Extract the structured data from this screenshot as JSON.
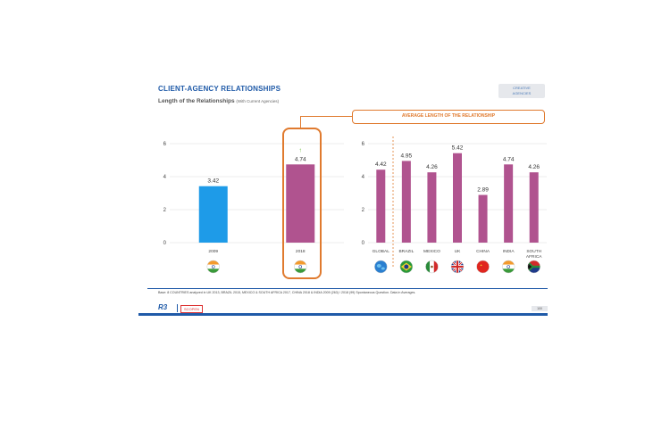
{
  "header": {
    "title": "CLIENT-AGENCY  RELATIONSHIPS",
    "subtitle": "Length of the Relationships",
    "subtitle_note": "(With Current Agencies)",
    "tag_line1": "CREATIVE",
    "tag_line2": "AGENCIES"
  },
  "callout_label": "AVERAGE LENGTH OF THE RELATIONSHIP",
  "footnote": "Base: 8 COUNTRIES analyzed in UK 2013, BRAZIL 2015, MEXICO & SOUTH AFRICA 2017, CHINA 2018 & INDIA 2009 (263) / 2018 (99) Spontaneous Question. Data in Averages.",
  "footer": {
    "logo": "R3",
    "brand": "SCOPEN",
    "page": "100"
  },
  "colors": {
    "blue": "#1e9be8",
    "purple": "#b0538f",
    "orange": "#e07a2e",
    "grid": "#d9d9d9"
  },
  "chart_data": [
    {
      "type": "bar",
      "categories": [
        "2009",
        "2018"
      ],
      "values": [
        3.42,
        4.74
      ],
      "bar_colors": [
        "#1e9be8",
        "#b0538f"
      ],
      "flags": [
        "india",
        "india"
      ],
      "ylim": [
        0,
        6
      ],
      "yticks": [
        "0",
        "2",
        "4",
        "6"
      ],
      "trend_marker": "↑",
      "grid": true
    },
    {
      "type": "bar",
      "categories": [
        "GLOBAL",
        "BRAZIL",
        "MEXICO",
        "UK",
        "CHINA",
        "INDIA",
        "SOUTH AFRICA"
      ],
      "values": [
        4.42,
        4.95,
        4.26,
        5.42,
        2.89,
        4.74,
        4.26
      ],
      "bar_color": "#b0538f",
      "flags": [
        "globe",
        "brazil",
        "mexico",
        "uk",
        "china",
        "india",
        "south-africa"
      ],
      "ylim": [
        0,
        6
      ],
      "yticks": [
        "0",
        "2",
        "4",
        "6"
      ],
      "grid": true
    }
  ]
}
